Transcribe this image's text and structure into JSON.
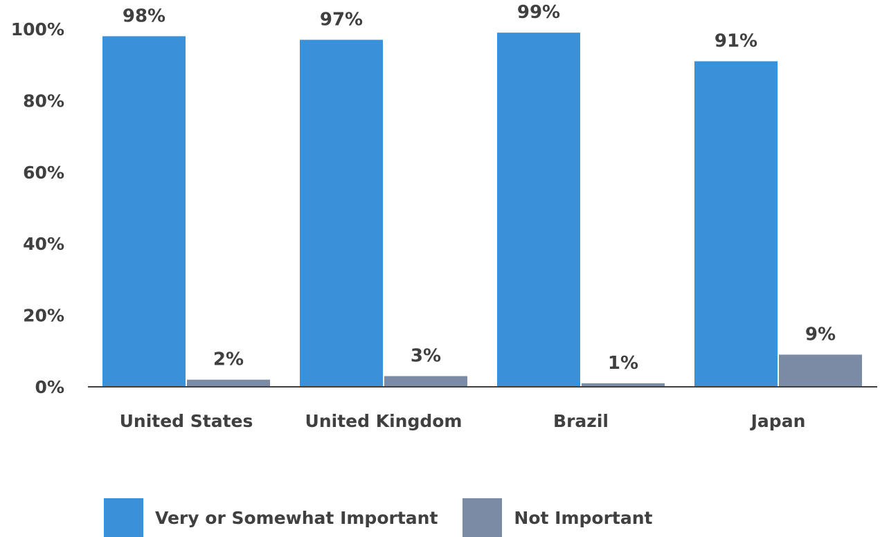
{
  "chart_data": {
    "type": "bar",
    "categories": [
      "United States",
      "United Kingdom",
      "Brazil",
      "Japan"
    ],
    "series": [
      {
        "name": "Very or Somewhat Important",
        "values": [
          98,
          97,
          99,
          91
        ],
        "labels": [
          "98%",
          "97%",
          "99%",
          "91%"
        ],
        "color": "#3891d9"
      },
      {
        "name": "Not Important",
        "values": [
          2,
          3,
          1,
          9
        ],
        "labels": [
          "2%",
          "3%",
          "1%",
          "9%"
        ],
        "color": "#7b8ba5"
      }
    ],
    "yticks": [
      "0%",
      "20%",
      "40%",
      "60%",
      "80%",
      "100%"
    ],
    "ylim": [
      0,
      100
    ],
    "grid": false,
    "legend_position": "bottom",
    "title": "",
    "xlabel": "",
    "ylabel": ""
  }
}
